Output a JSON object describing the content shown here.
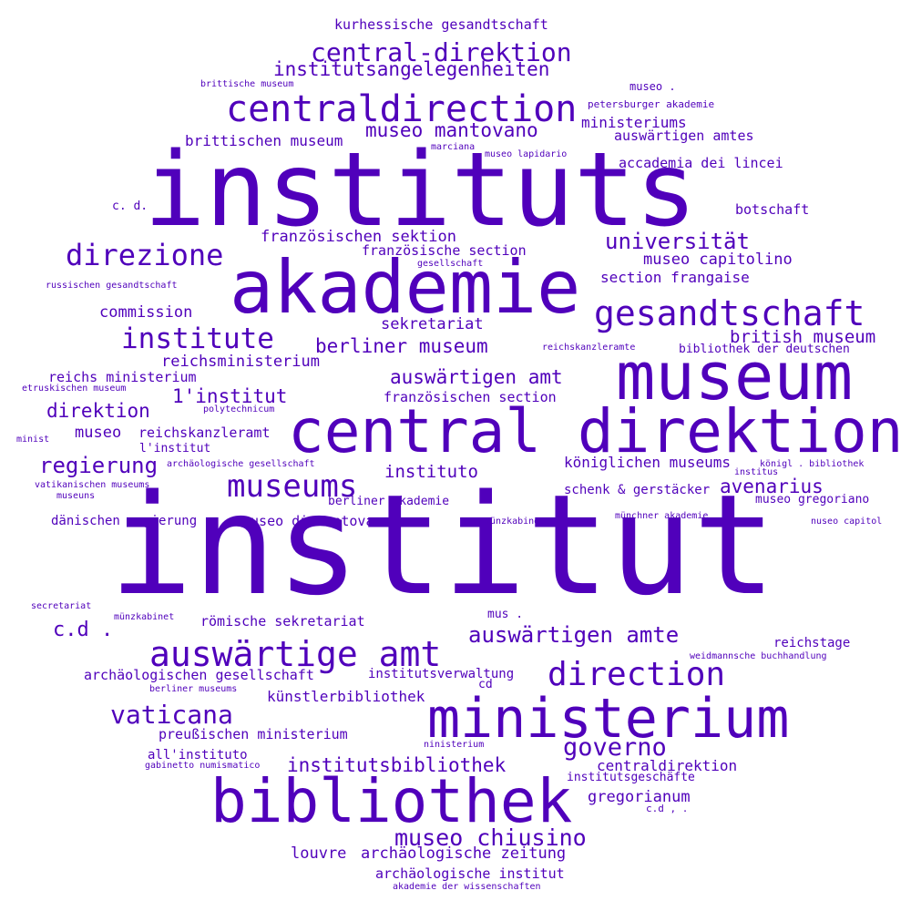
{
  "color": "#5000bb",
  "words": [
    "institut",
    "instituts",
    "akademie",
    "museum",
    "central direktion",
    "bibliothek",
    "ministerium",
    "centraldirection",
    "auswärtige amt",
    "gesandtschaft",
    "direction",
    "museums",
    "direzione",
    "institute",
    "central-direktion",
    "vaticana",
    "governo",
    "museo chiusino",
    "universität",
    "auswärtigen amte",
    "institutsangelegenheiten",
    "regierung",
    "auswärtigen amt",
    "museo mantovano",
    "berliner museum",
    "institutsbibliothek",
    "avenarius",
    "british museum",
    "direktion",
    "1'institut",
    "c.d .",
    "instituto",
    "brittischen museum",
    "französischen sektion",
    "museo capitolino",
    "reichsministerium",
    "louvre",
    "archäologische zeitung",
    "gregorianum",
    "sekretariat",
    "commission",
    "section frangaise",
    "ministeriums",
    "königlichen museums",
    "centraldirektion",
    "künstlerbibliothek",
    "archäologische institut",
    "reichs ministerium",
    "französischen section",
    "museo",
    "reichskanzleramt",
    "archäologischen gesellschaft",
    "museo di mantova",
    "römische sekretariat",
    "preußischen ministerium",
    "accademia dei lincei",
    "kurhessische gesandtschaft",
    "auswärtigen amtes",
    "botschaft",
    "französische section",
    "schenk & gerstäcker",
    "institutsverwaltung",
    "reichstage",
    "berliner akademie",
    "museo gregoriano",
    "dänischen regierung",
    "l'institut",
    "all'instituto",
    "institutsgeschäfte",
    "bibliothek der deutschen",
    "c. d.",
    "museo .",
    "brittische museum",
    "petersburger akademie",
    "marciana",
    "museo lapidario",
    "gesellschaft",
    "russischen gesandtschaft",
    "reichskanzleramte",
    "etruskischen museum",
    "polytechnicum",
    "minist",
    "archäologische gesellschaft",
    "königl . bibliothek",
    "institus",
    "vatikanischen museums",
    "museuns",
    "münzkabinets",
    "münchner akademie",
    "nuseo capitol",
    "secretariat",
    "münzkabinet",
    "mus .",
    "cd",
    "weidmannsche buchhandlung",
    "berliner museums",
    "ninisterium",
    "gabinetto numismatico",
    "c.d , .",
    "akademie der wissenschaften"
  ]
}
